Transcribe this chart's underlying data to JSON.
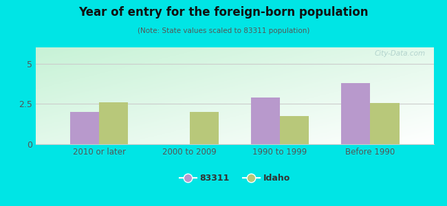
{
  "title": "Year of entry for the foreign-born population",
  "subtitle": "(Note: State values scaled to 83311 population)",
  "categories": [
    "2010 or later",
    "2000 to 2009",
    "1990 to 1999",
    "Before 1990"
  ],
  "values_83311": [
    2.0,
    0.0,
    2.9,
    3.8
  ],
  "values_idaho": [
    2.6,
    2.0,
    1.75,
    2.55
  ],
  "color_83311": "#b899cc",
  "color_idaho": "#b8c87a",
  "background_color": "#00e5e5",
  "ylim": [
    0,
    6
  ],
  "yticks": [
    0,
    2.5,
    5
  ],
  "bar_width": 0.32,
  "legend_83311": "83311",
  "legend_idaho": "Idaho",
  "watermark": "City-Data.com"
}
